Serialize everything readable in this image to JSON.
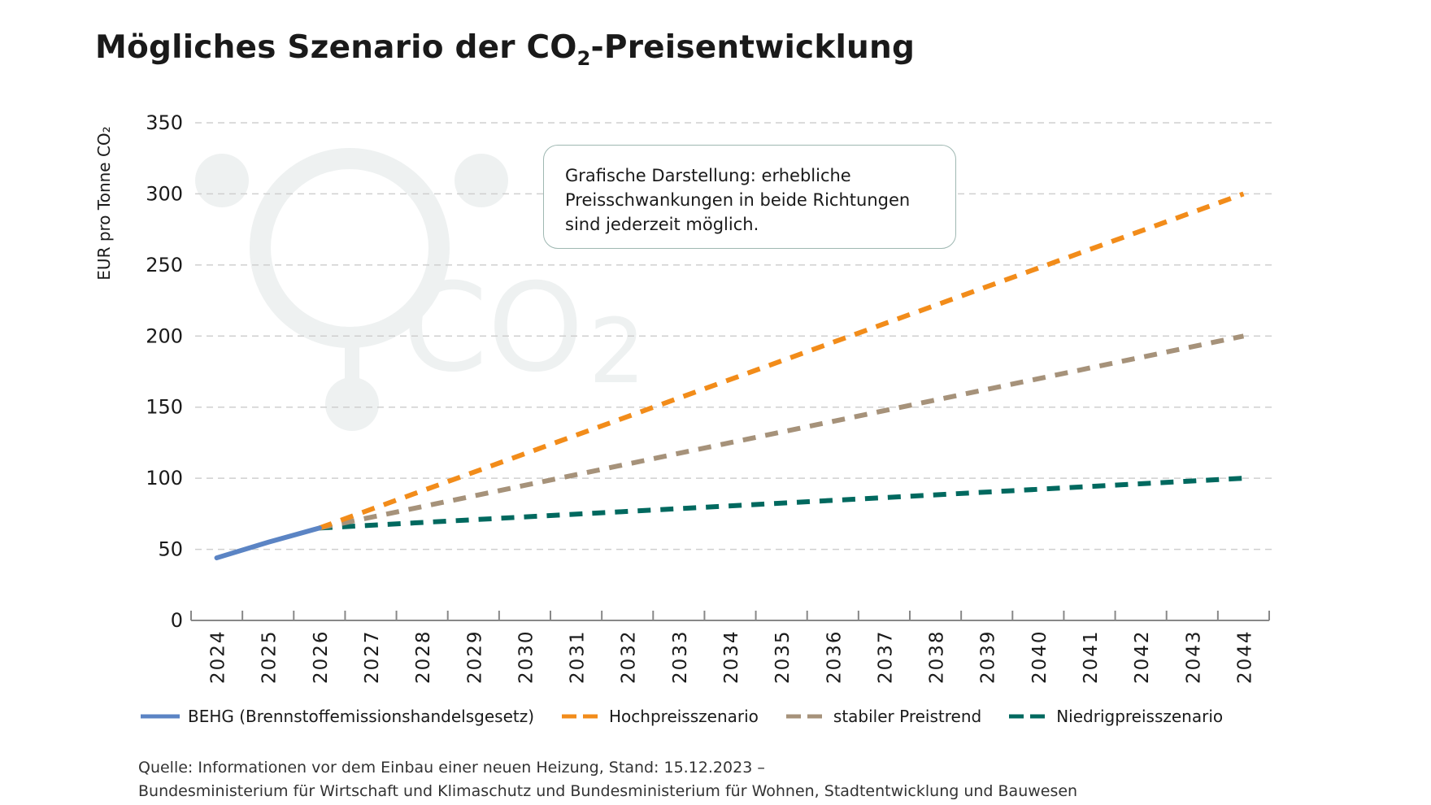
{
  "title_main": "Mögliches Szenario der CO",
  "title_sub": "2",
  "title_rest": "-Preisentwicklung",
  "note": [
    "Grafische Darstellung: erhebliche",
    "Preisschwankungen in beide Richtungen",
    "sind jederzeit möglich."
  ],
  "source": [
    "Quelle: Informationen vor dem Einbau einer neuen Heizung, Stand: 15.12.2023 –",
    "Bundesministerium für Wirtschaft und Klimaschutz und Bundesministerium für Wohnen, Stadtentwicklung und Bauwesen"
  ],
  "watermark": "CO2",
  "chart_data": {
    "type": "line",
    "ylabel": "EUR pro Tonne CO₂",
    "ylim": [
      0,
      350
    ],
    "yticks": [
      0,
      50,
      100,
      150,
      200,
      250,
      300,
      350
    ],
    "grid": true,
    "legend_position": "bottom",
    "x": [
      2024,
      2025,
      2026,
      2027,
      2028,
      2029,
      2030,
      2031,
      2032,
      2033,
      2034,
      2035,
      2036,
      2037,
      2038,
      2039,
      2040,
      2041,
      2042,
      2043,
      2044
    ],
    "series": [
      {
        "name": "BEHG (Brennstoffemissionshandelsgesetz)",
        "color": "#5b84c4",
        "dashed": false,
        "x": [
          2024,
          2025,
          2026
        ],
        "values": [
          44,
          55,
          65
        ]
      },
      {
        "name": "Hochpreisszenario",
        "color": "#f28c1a",
        "dashed": true,
        "x": [
          2026,
          2044
        ],
        "values": [
          65,
          300
        ]
      },
      {
        "name": "stabiler Preistrend",
        "color": "#a6927a",
        "dashed": true,
        "x": [
          2026,
          2044
        ],
        "values": [
          65,
          200
        ]
      },
      {
        "name": "Niedrigpreisszenario",
        "color": "#00695f",
        "dashed": true,
        "x": [
          2026,
          2044
        ],
        "values": [
          65,
          100
        ]
      }
    ]
  }
}
